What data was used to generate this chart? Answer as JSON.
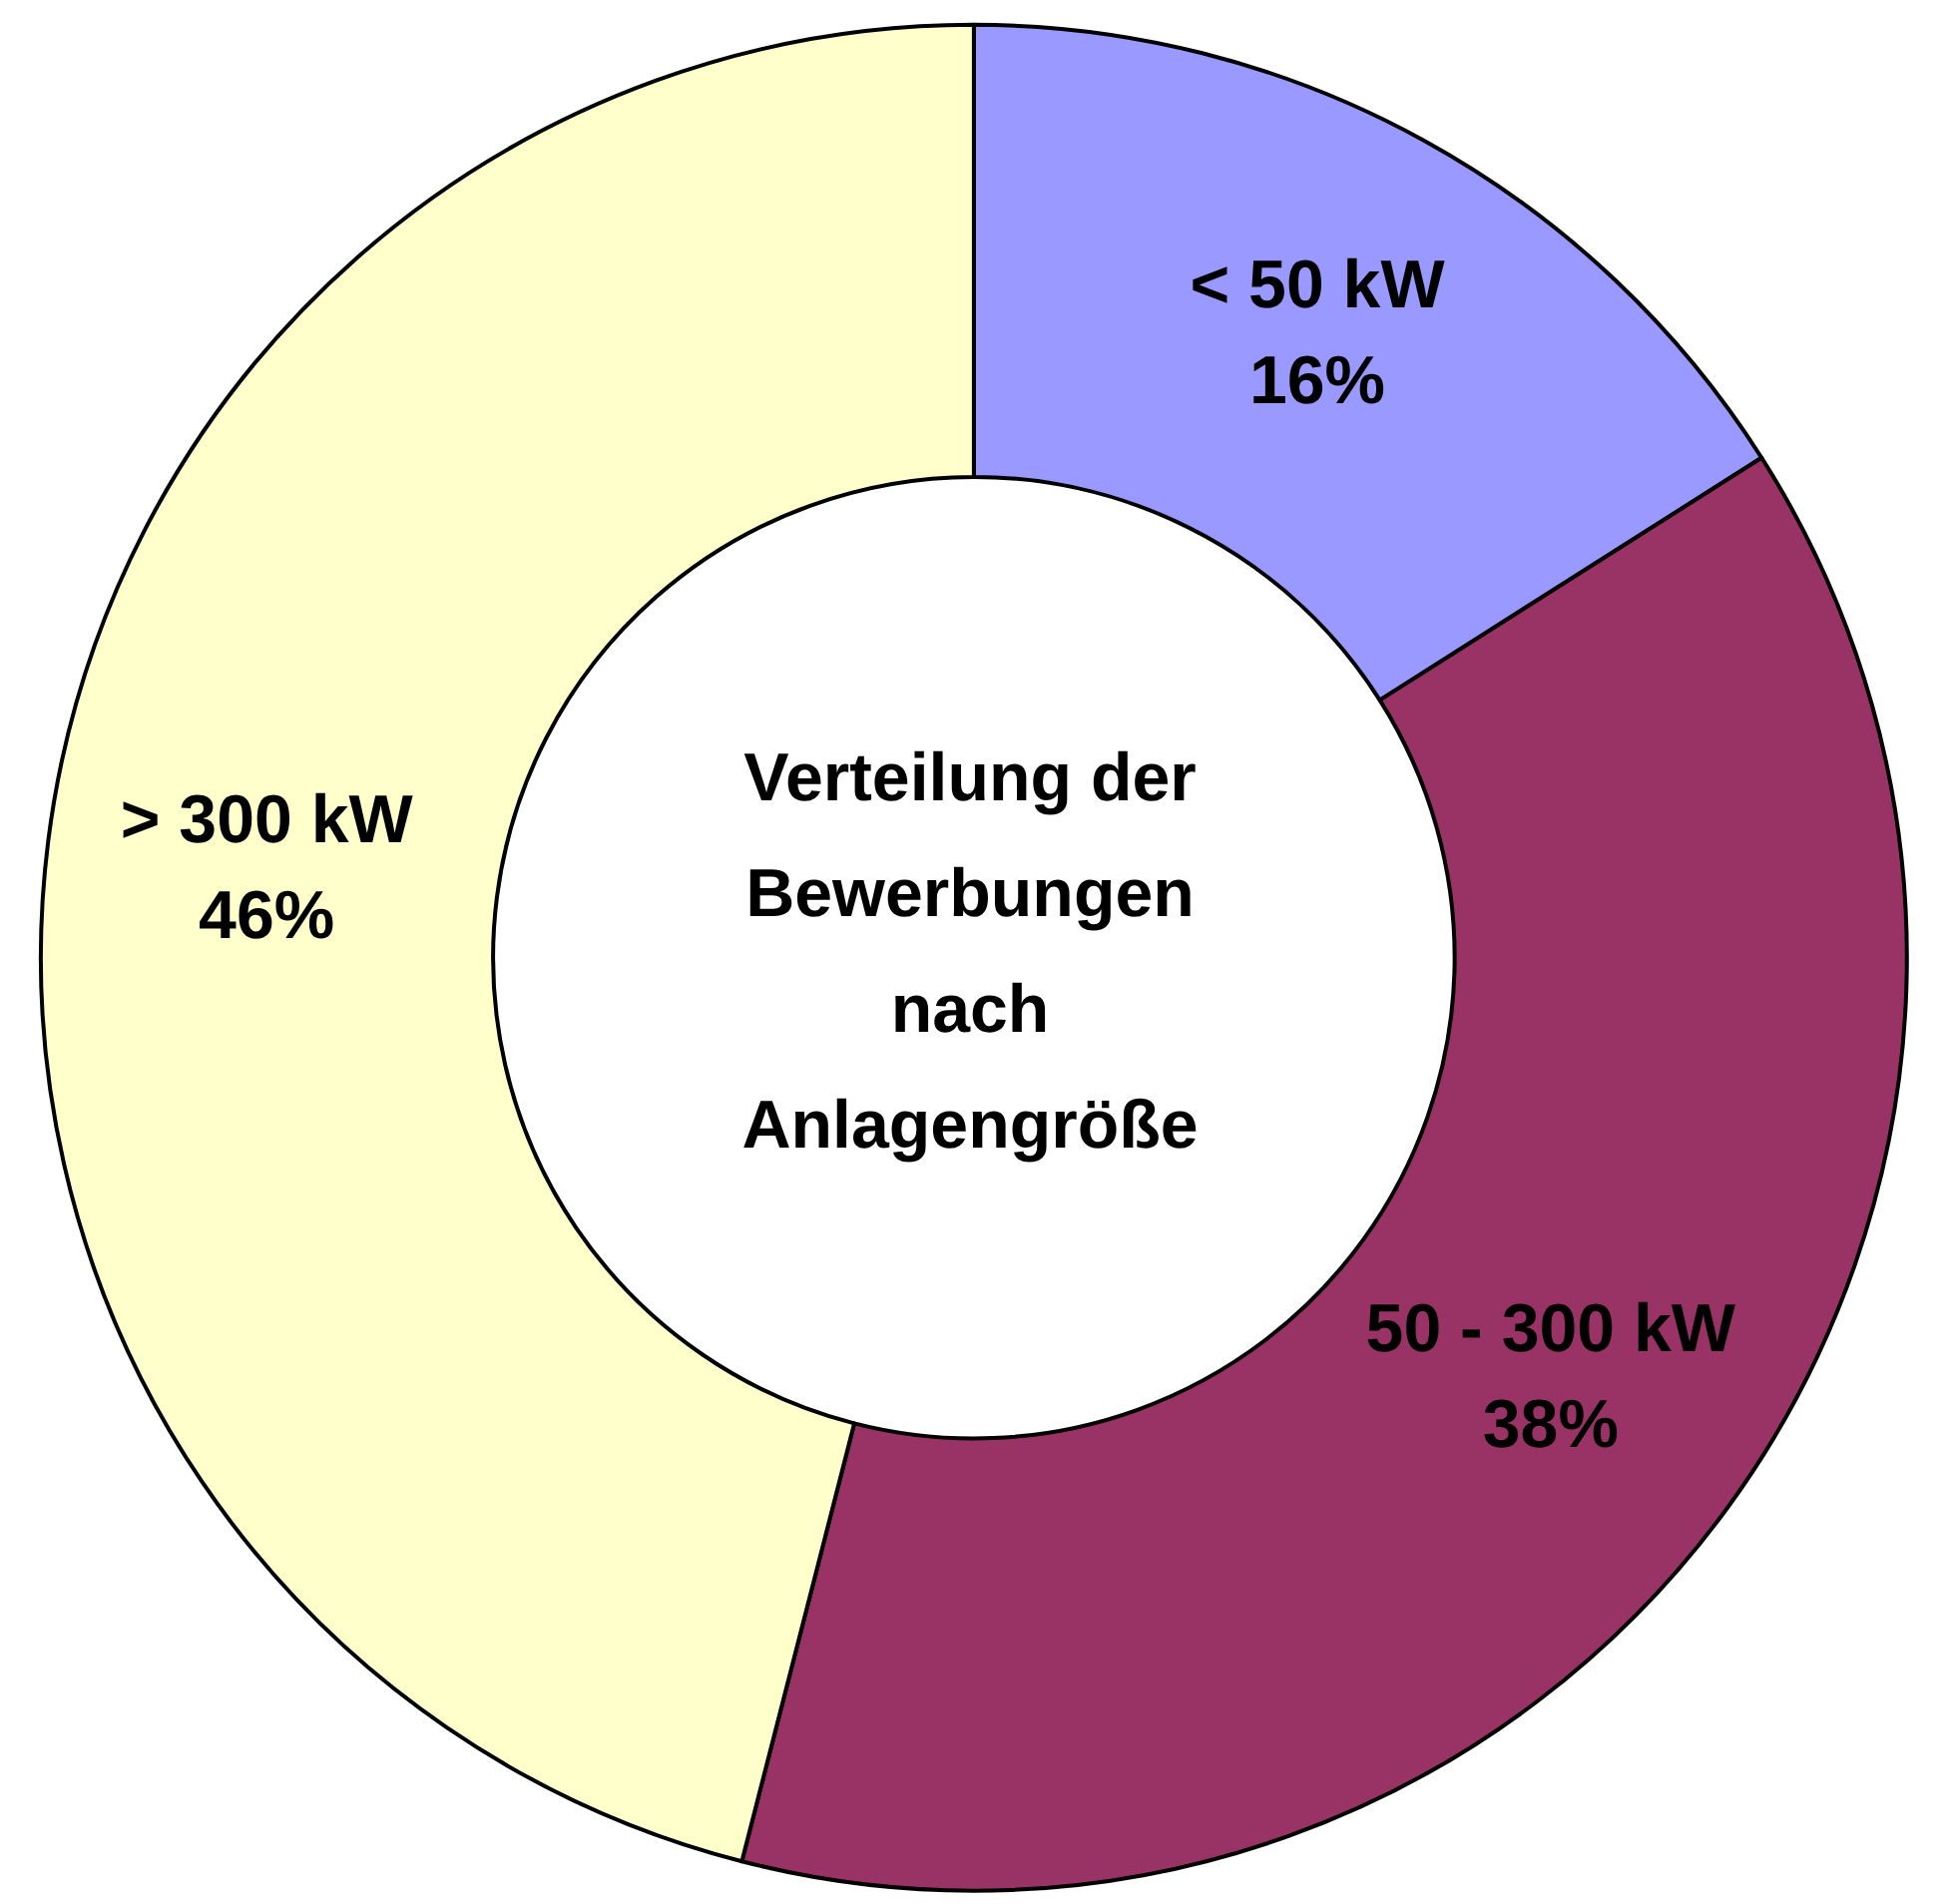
{
  "chart_data": {
    "type": "donut",
    "title": "Verteilung der\nBewerbungen\nnach\nAnlagengröße",
    "categories": [
      "< 50 kW",
      "50 - 300 kW",
      "> 300 kW"
    ],
    "values": [
      16,
      38,
      46
    ],
    "value_labels": [
      "16%",
      "38%",
      "46%"
    ],
    "colors": [
      "#9999ff",
      "#993366",
      "#ffffcc"
    ],
    "legend": false
  }
}
